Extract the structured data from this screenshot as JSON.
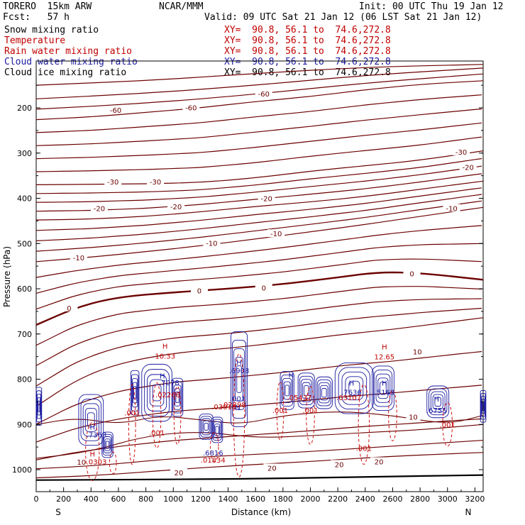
{
  "header": {
    "model": "TORERO  15km ARW",
    "center": "NCAR/MMM",
    "init": "Init: 00 UTC Thu 19 Jan 12",
    "fcst": "Fcst:   57 h",
    "valid": "Valid: 09 UTC Sat 21 Jan 12 (06 LST Sat 21 Jan 12)"
  },
  "fields": [
    {
      "name": "Snow mixing ratio",
      "xy": "XY=  90.8, 56.1 to  74.6,272.8",
      "color": "#000000"
    },
    {
      "name": "Temperature",
      "xy": "XY=  90.8, 56.1 to  74.6,272.8",
      "color": "#c00000"
    },
    {
      "name": "Rain water mixing ratio",
      "xy": "XY=  90.8, 56.1 to  74.6,272.8",
      "color": "#c00000"
    },
    {
      "name": "Cloud water mixing ratio",
      "xy": "XY=  90.8, 56.1 to  74.6,272.8",
      "color": "#1a1aa0"
    },
    {
      "name": "Cloud ice mixing ratio",
      "xy": "XY=  90.8, 56.1 to  74.6,272.8",
      "color": "#000000"
    }
  ],
  "chart_data": {
    "type": "line",
    "title": "Vertical cross section",
    "xlabel": "Distance (km)",
    "ylabel": "Pressure (hPa)",
    "xlim": [
      0,
      3260
    ],
    "ylim": [
      1050,
      100
    ],
    "x_ticks": [
      0,
      200,
      400,
      600,
      800,
      1000,
      1200,
      1400,
      1600,
      1800,
      2000,
      2200,
      2400,
      2600,
      2800,
      3000,
      3200
    ],
    "y_ticks": [
      200,
      300,
      400,
      500,
      600,
      700,
      800,
      900,
      1000
    ],
    "end_labels": {
      "left": "S",
      "right": "N"
    },
    "temperature_contours": [
      {
        "label": "-60",
        "points": [
          [
            0,
            226
          ],
          [
            400,
            220
          ],
          [
            800,
            210
          ],
          [
            1200,
            200
          ],
          [
            1600,
            186
          ],
          [
            2000,
            175
          ],
          [
            2400,
            160
          ],
          [
            2800,
            148
          ],
          [
            3260,
            140
          ]
        ],
        "label_at": [
          [
            580,
            205
          ],
          [
            1130,
            199
          ],
          [
            1660,
            169
          ]
        ]
      },
      {
        "label": "-30",
        "points": [
          [
            0,
            370
          ],
          [
            400,
            369
          ],
          [
            800,
            368
          ],
          [
            1200,
            365
          ],
          [
            1600,
            355
          ],
          [
            2000,
            340
          ],
          [
            2400,
            328
          ],
          [
            2800,
            316
          ],
          [
            3260,
            295
          ]
        ],
        "label_at": [
          [
            560,
            363
          ],
          [
            870,
            363
          ],
          [
            3100,
            297
          ]
        ]
      },
      {
        "label": "-20",
        "points": [
          [
            0,
            448
          ],
          [
            400,
            446
          ],
          [
            800,
            440
          ],
          [
            1200,
            430
          ],
          [
            1600,
            418
          ],
          [
            2000,
            408
          ],
          [
            2400,
            396
          ],
          [
            2800,
            380
          ],
          [
            3260,
            362
          ]
        ],
        "label_at": [
          [
            460,
            422
          ],
          [
            1020,
            418
          ],
          [
            1680,
            400
          ],
          [
            3150,
            331
          ]
        ]
      },
      {
        "label": "-10",
        "points": [
          [
            0,
            540
          ],
          [
            400,
            530
          ],
          [
            800,
            518
          ],
          [
            1200,
            505
          ],
          [
            1600,
            490
          ],
          [
            2000,
            474
          ],
          [
            2400,
            458
          ],
          [
            2800,
            440
          ],
          [
            3260,
            420
          ]
        ],
        "label_at": [
          [
            310,
            531
          ],
          [
            1280,
            499
          ],
          [
            1750,
            478
          ],
          [
            3030,
            422
          ]
        ]
      },
      {
        "label": "0",
        "points": [
          [
            0,
            680
          ],
          [
            300,
            640
          ],
          [
            600,
            618
          ],
          [
            1000,
            608
          ],
          [
            1400,
            600
          ],
          [
            1800,
            590
          ],
          [
            2200,
            575
          ],
          [
            2500,
            563
          ],
          [
            2800,
            565
          ],
          [
            3260,
            580
          ]
        ],
        "label_at": [
          [
            240,
            642
          ],
          [
            1190,
            604
          ],
          [
            1660,
            598
          ],
          [
            2740,
            566
          ]
        ]
      },
      {
        "label": "10",
        "points": [
          [
            0,
            860
          ],
          [
            300,
            800
          ],
          [
            600,
            765
          ],
          [
            1000,
            742
          ],
          [
            1400,
            732
          ],
          [
            1800,
            718
          ],
          [
            2200,
            702
          ],
          [
            2600,
            690
          ],
          [
            3000,
            674
          ],
          [
            3260,
            664
          ]
        ],
        "label_at": [
          [
            2780,
            739
          ]
        ]
      },
      {
        "label": "20",
        "points": [
          [
            0,
            1018
          ],
          [
            500,
            1012
          ],
          [
            1000,
            1000
          ],
          [
            1500,
            990
          ],
          [
            2000,
            982
          ],
          [
            2500,
            972
          ],
          [
            3000,
            965
          ],
          [
            3260,
            962
          ]
        ],
        "label_at": [
          [
            1040,
            1006
          ],
          [
            1720,
            996
          ],
          [
            2210,
            988
          ],
          [
            2500,
            982
          ]
        ]
      }
    ],
    "annotations": [
      {
        "text": "H",
        "x": 940,
        "p": 726,
        "color": "#c00000"
      },
      {
        "text": "10.33",
        "x": 940,
        "p": 748,
        "color": "#c00000"
      },
      {
        "text": "H",
        "x": 2540,
        "p": 728,
        "color": "#c00000"
      },
      {
        "text": "12.65",
        "x": 2540,
        "p": 750,
        "color": "#c00000"
      },
      {
        "text": "H",
        "x": 920,
        "p": 792,
        "color": "#1a1aa0"
      },
      {
        "text": ".7078",
        "x": 970,
        "p": 807,
        "color": "#1a1aa0"
      },
      {
        "text": "H",
        "x": 1480,
        "p": 762,
        "color": "#1a1aa0"
      },
      {
        "text": ".6908",
        "x": 1480,
        "p": 780,
        "color": "#1a1aa0"
      },
      {
        "text": "H",
        "x": 1860,
        "p": 790,
        "color": "#1a1aa0"
      },
      {
        "text": "H",
        "x": 2300,
        "p": 808,
        "color": "#1a1aa0"
      },
      {
        "text": ".7636",
        "x": 2300,
        "p": 828,
        "color": "#1a1aa0"
      },
      {
        "text": "H",
        "x": 2540,
        "p": 808,
        "color": "#1a1aa0"
      },
      {
        "text": ".5163",
        "x": 2540,
        "p": 828,
        "color": "#1a1aa0"
      },
      {
        "text": "H",
        "x": 2920,
        "p": 843,
        "color": "#1a1aa0"
      },
      {
        "text": ".6755",
        "x": 2920,
        "p": 868,
        "color": "#1a1aa0"
      },
      {
        "text": "H",
        "x": 410,
        "p": 905,
        "color": "#1a1aa0"
      },
      {
        "text": ".7363",
        "x": 440,
        "p": 922,
        "color": "#1a1aa0"
      },
      {
        "text": "H",
        "x": 410,
        "p": 965,
        "color": "#c00000"
      },
      {
        "text": ".0303",
        "x": 440,
        "p": 982,
        "color": "#c00000"
      },
      {
        "text": ".6816",
        "x": 1290,
        "p": 962,
        "color": "#1a1aa0"
      },
      {
        "text": ".01834",
        "x": 1290,
        "p": 978,
        "color": "#c00000"
      },
      {
        "text": ".02298",
        "x": 1440,
        "p": 856,
        "color": "#c00000"
      },
      {
        "text": ".03018",
        "x": 1370,
        "p": 860,
        "color": "#c00000"
      },
      {
        "text": ".001",
        "x": 1470,
        "p": 842,
        "color": "#1a1aa0"
      },
      {
        "text": "N",
        "x": 1470,
        "p": 862,
        "color": "#1a1aa0"
      },
      {
        "text": ".02266",
        "x": 960,
        "p": 834,
        "color": "#c00000"
      },
      {
        "text": ".001",
        "x": 700,
        "p": 874,
        "color": "#c00000"
      },
      {
        "text": ".001",
        "x": 880,
        "p": 918,
        "color": "#c00000"
      },
      {
        "text": ".001",
        "x": 1780,
        "p": 868,
        "color": "#c00000"
      },
      {
        "text": ".001",
        "x": 2000,
        "p": 868,
        "color": "#c00000"
      },
      {
        "text": ".001",
        "x": 2390,
        "p": 952,
        "color": "#c00000"
      },
      {
        "text": ".001",
        "x": 3000,
        "p": 900,
        "color": "#c00000"
      },
      {
        "text": ".03107",
        "x": 2280,
        "p": 840,
        "color": "#c00000"
      },
      {
        "text": ".05437",
        "x": 1920,
        "p": 840,
        "color": "#c00000"
      }
    ]
  }
}
